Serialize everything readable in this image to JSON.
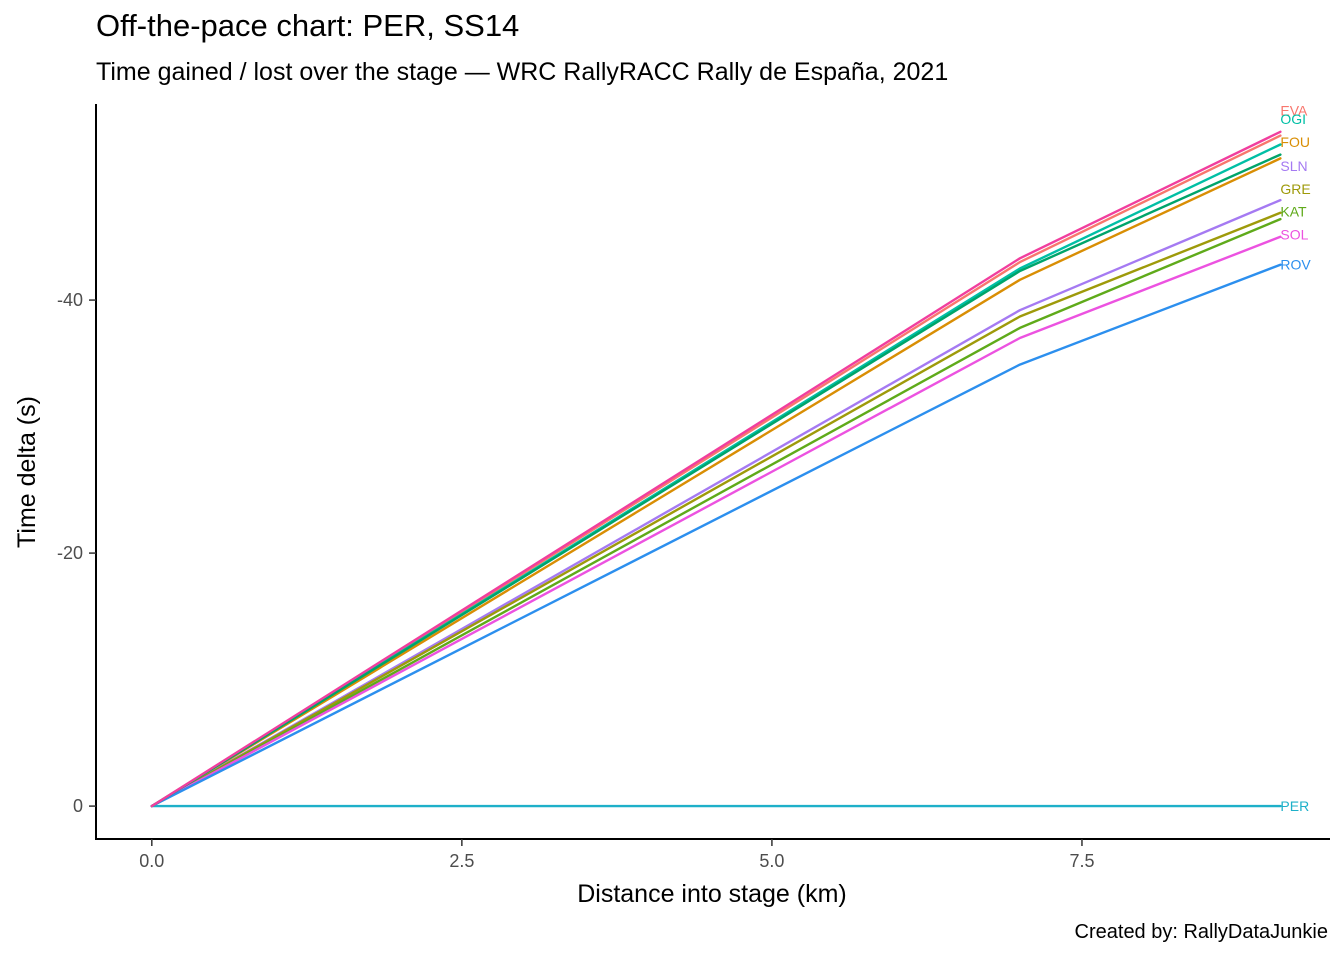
{
  "title": "Off-the-pace chart: PER, SS14",
  "subtitle": "Time gained / lost over the stage — WRC RallyRACC Rally de España, 2021",
  "caption": "Created by: RallyDataJunkie",
  "chart_data": {
    "type": "line",
    "xlabel": "Distance into stage (km)",
    "ylabel": "Time delta (s)",
    "xlim": [
      -0.45,
      9.5
    ],
    "ylim": [
      2.6,
      -55.5
    ],
    "y_reversed": true,
    "x_ticks": [
      0,
      2.5,
      5,
      7.5
    ],
    "x_tick_labels": [
      "0.0",
      "2.5",
      "5.0",
      "7.5"
    ],
    "y_ticks": [
      0,
      -20,
      -40
    ],
    "y_tick_labels": [
      "0",
      "-20",
      "-40"
    ],
    "grid": false,
    "legend": "none (direct labels at line ends)",
    "x": [
      0,
      7,
      9.1
    ],
    "series": [
      {
        "name": "EVA",
        "color": "#F8766D",
        "values": [
          0,
          -43.0,
          -53.0
        ],
        "label_y": -55.0
      },
      {
        "name": "OGI",
        "color": "#00BFA5",
        "values": [
          0,
          -42.5,
          -52.3
        ],
        "label_y": -54.3
      },
      {
        "name": "FOU",
        "color": "#D98E04",
        "values": [
          0,
          -41.6,
          -51.2
        ],
        "label_y": -52.5
      },
      {
        "name": "SLN",
        "color": "#A57AF2",
        "values": [
          0,
          -39.2,
          -47.9
        ],
        "label_y": -50.6
      },
      {
        "name": "GRE",
        "color": "#9E9A0A",
        "values": [
          0,
          -38.7,
          -46.9
        ],
        "label_y": -48.8
      },
      {
        "name": "KAT",
        "color": "#5FAA1A",
        "values": [
          0,
          -37.8,
          -46.4
        ],
        "label_y": -47.0
      },
      {
        "name": "SOL",
        "color": "#EC52E0",
        "values": [
          0,
          -37.0,
          -45.0
        ],
        "label_y": -45.2
      },
      {
        "name": "ROV",
        "color": "#2C8FEE",
        "values": [
          0,
          -34.9,
          -42.8
        ],
        "label_y": -42.8
      },
      {
        "name": "PER",
        "color": "#1EB0C9",
        "values": [
          0,
          0,
          0
        ],
        "label_y": 0
      },
      {
        "color": "#00A46A",
        "values": [
          0,
          -42.3,
          -51.5
        ]
      },
      {
        "color": "#F13E9E",
        "values": [
          0,
          -43.3,
          -53.3
        ]
      }
    ]
  }
}
